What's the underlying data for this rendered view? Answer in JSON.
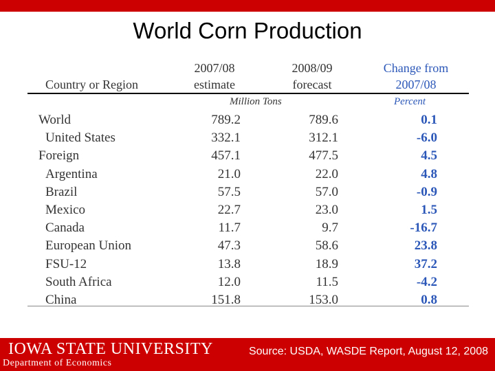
{
  "slide": {
    "title": "World Corn Production"
  },
  "table": {
    "headers": {
      "region": "Country or Region",
      "col1_line1": "2007/08",
      "col1_line2": "estimate",
      "col2_line1": "2008/09",
      "col2_line2": "forecast",
      "col3_line1": "Change from",
      "col3_line2": "2007/08"
    },
    "units": {
      "tons": "Million Tons",
      "percent": "Percent"
    },
    "rows": [
      {
        "region": "World",
        "v2007": "789.2",
        "v2008": "789.6",
        "change": "0.1"
      },
      {
        "region": "United States",
        "v2007": "332.1",
        "v2008": "312.1",
        "change": "-6.0"
      },
      {
        "region": "Foreign",
        "v2007": "457.1",
        "v2008": "477.5",
        "change": "4.5"
      },
      {
        "region": "Argentina",
        "v2007": "21.0",
        "v2008": "22.0",
        "change": "4.8"
      },
      {
        "region": "Brazil",
        "v2007": "57.5",
        "v2008": "57.0",
        "change": "-0.9"
      },
      {
        "region": "Mexico",
        "v2007": "22.7",
        "v2008": "23.0",
        "change": "1.5"
      },
      {
        "region": "Canada",
        "v2007": "11.7",
        "v2008": "9.7",
        "change": "-16.7"
      },
      {
        "region": "European Union",
        "v2007": "47.3",
        "v2008": "58.6",
        "change": "23.8"
      },
      {
        "region": "FSU-12",
        "v2007": "13.8",
        "v2008": "18.9",
        "change": "37.2"
      },
      {
        "region": "South Africa",
        "v2007": "12.0",
        "v2008": "11.5",
        "change": "-4.2"
      },
      {
        "region": "China",
        "v2007": "151.8",
        "v2008": "153.0",
        "change": "0.8"
      }
    ]
  },
  "footer": {
    "logo": "IOWA STATE UNIVERSITY",
    "department": "Department of Economics",
    "source": "Source: USDA, WASDE Report, August 12, 2008"
  },
  "colors": {
    "brand_red": "#cc0000",
    "accent_blue": "#2b57b8"
  }
}
